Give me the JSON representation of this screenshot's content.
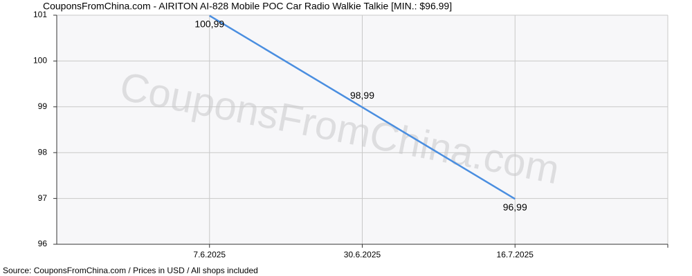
{
  "chart_data": {
    "type": "line",
    "title": "CouponsFromChina.com - AIRITON AI-828 Mobile POC Car Radio Walkie Talkie [MIN.: $96.99]",
    "watermark": "CouponsFromChina.com",
    "source": "Source: CouponsFromChina.com / Prices in USD / All shops included",
    "categories": [
      null,
      "7.6.2025",
      "30.6.2025",
      "16.7.2025",
      null
    ],
    "series": [
      {
        "name": "Price",
        "color": "#4a8ee0",
        "values": [
          null,
          100.99,
          98.99,
          96.99,
          null
        ],
        "value_labels": [
          null,
          "100,99",
          "98,99",
          "96,99",
          null
        ]
      }
    ],
    "ylim": [
      96,
      101
    ],
    "yticks": [
      96,
      97,
      98,
      99,
      100,
      101
    ],
    "grid": true
  }
}
